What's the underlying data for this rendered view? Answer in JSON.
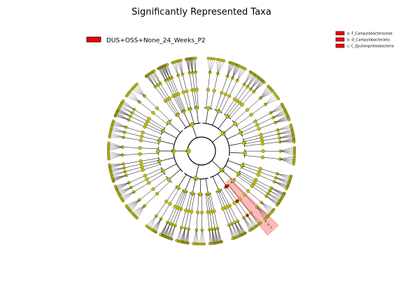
{
  "title": "Significantly Represented Taxa",
  "main_legend": {
    "label": "DUS+OSS+None_24_Weeks_P2",
    "color": "#ff0000"
  },
  "taxa_legend": [
    {
      "text": "a: F_Campylobacteraceae",
      "color": "#ff0000"
    },
    {
      "text": "b: O_Campylobacterales",
      "color": "#ff0000"
    },
    {
      "text": "c: C_Epsilonproteobacteria",
      "color": "#ff0000"
    }
  ],
  "clade_labels": [
    "a",
    "b",
    "c"
  ],
  "colors": {
    "node_fill": "#bcbc1c",
    "node_stroke": "#6b6b00",
    "highlight_node": "#cc0000",
    "highlight_band": "#ff8080",
    "branch": "#000000",
    "leaf_line": "#333333"
  }
}
